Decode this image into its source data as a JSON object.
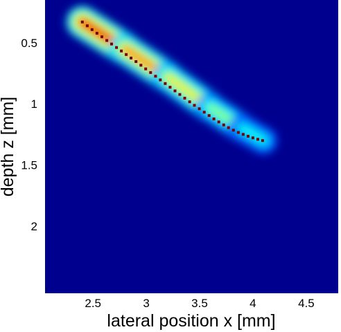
{
  "chart_data": {
    "type": "heatmap",
    "title": "",
    "xlabel": "lateral position x [mm]",
    "ylabel": "depth z [mm]",
    "xlim": [
      2.05,
      4.8
    ],
    "ylim": [
      0.15,
      2.55
    ],
    "y_axis_direction": "down",
    "x_ticks": [
      2.5,
      3,
      3.5,
      4,
      4.5
    ],
    "x_tick_labels": [
      "2.5",
      "3",
      "3.5",
      "4",
      "4.5"
    ],
    "y_ticks": [
      0.5,
      1,
      1.5,
      2
    ],
    "y_tick_labels": [
      "0.5",
      "1",
      "1.5",
      "2"
    ],
    "colormap": "jet",
    "background_color": "#00008f",
    "grid": false,
    "colorbar": false,
    "intensity_ridge": {
      "description_points_x_mm": [
        2.4,
        2.8,
        3.2,
        3.6,
        3.9,
        4.1
      ],
      "description_points_z_mm": [
        0.33,
        0.55,
        0.78,
        1.03,
        1.2,
        1.3
      ],
      "peak_intensity_start": 1.0,
      "peak_intensity_end": 0.35
    },
    "series": [
      {
        "type": "scatter",
        "color": "#7a0000",
        "marker": "square",
        "x": [
          2.4,
          2.446,
          2.491,
          2.537,
          2.583,
          2.629,
          2.674,
          2.72,
          2.766,
          2.811,
          2.857,
          2.903,
          2.949,
          2.994,
          3.04,
          3.086,
          3.131,
          3.177,
          3.223,
          3.269,
          3.314,
          3.36,
          3.406,
          3.451,
          3.497,
          3.543,
          3.589,
          3.634,
          3.68,
          3.726,
          3.771,
          3.817,
          3.863,
          3.909,
          3.954,
          4.0,
          4.046,
          4.091
        ],
        "y": [
          0.33,
          0.361,
          0.392,
          0.422,
          0.451,
          0.481,
          0.51,
          0.539,
          0.567,
          0.596,
          0.625,
          0.654,
          0.684,
          0.714,
          0.744,
          0.774,
          0.804,
          0.834,
          0.864,
          0.894,
          0.923,
          0.953,
          0.983,
          1.012,
          1.04,
          1.068,
          1.096,
          1.123,
          1.148,
          1.172,
          1.195,
          1.215,
          1.234,
          1.25,
          1.265,
          1.278,
          1.29,
          1.3
        ]
      }
    ]
  }
}
